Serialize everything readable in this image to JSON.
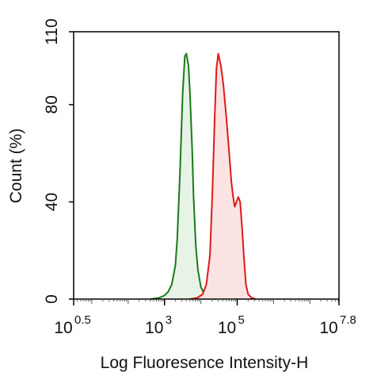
{
  "chart_data": {
    "type": "area",
    "xlabel": "Log Fluoresence Intensity-H",
    "ylabel": "Count  (%)",
    "x_scale": "log10",
    "xlim": [
      0.5,
      7.8
    ],
    "ylim": [
      0,
      110
    ],
    "x_ticks": [
      {
        "base": "10",
        "exp": "0.5",
        "value": 0.5
      },
      {
        "base": "10",
        "exp": "3",
        "value": 3
      },
      {
        "base": "10",
        "exp": "5",
        "value": 5
      },
      {
        "base": "10",
        "exp": "7.8",
        "value": 7.8
      }
    ],
    "y_ticks": [
      {
        "label": "0",
        "value": 0
      },
      {
        "label": "40",
        "value": 40
      },
      {
        "label": "80",
        "value": 80
      },
      {
        "label": "110",
        "value": 110
      }
    ],
    "grid": false,
    "series": [
      {
        "color": "#1a7a1a",
        "fill": "#e8f3e8",
        "x": [
          2.6,
          2.85,
          3.0,
          3.1,
          3.2,
          3.3,
          3.35,
          3.42,
          3.5,
          3.56,
          3.6,
          3.66,
          3.7,
          3.76,
          3.8,
          3.86,
          3.92,
          4.0,
          4.1,
          4.2,
          4.4
        ],
        "y": [
          0,
          0.5,
          1.5,
          3,
          6,
          14,
          25,
          50,
          85,
          100,
          101,
          96,
          85,
          62,
          42,
          22,
          12,
          5,
          2,
          0.5,
          0
        ]
      },
      {
        "color": "#dd1a1a",
        "fill": "#fbe3e3",
        "x": [
          3.7,
          3.9,
          4.05,
          4.15,
          4.25,
          4.32,
          4.38,
          4.43,
          4.48,
          4.55,
          4.62,
          4.7,
          4.78,
          4.84,
          4.88,
          4.93,
          4.98,
          5.03,
          5.08,
          5.13,
          5.18,
          5.24,
          5.3,
          5.4,
          5.5
        ],
        "y": [
          0,
          0.5,
          2,
          6,
          18,
          45,
          75,
          95,
          101,
          96,
          88,
          75,
          60,
          48,
          43,
          38,
          40,
          42,
          40,
          30,
          18,
          6,
          2,
          0.5,
          0
        ]
      }
    ]
  }
}
